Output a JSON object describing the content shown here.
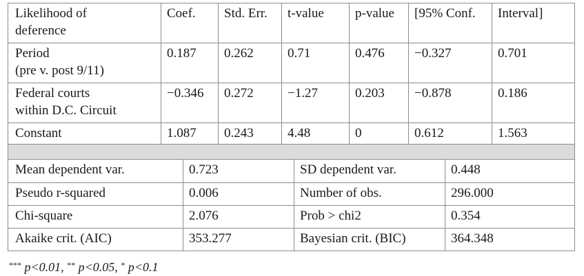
{
  "regression": {
    "headers": [
      "Likelihood of deference",
      "Coef.",
      "Std. Err.",
      "t-value",
      "p-value",
      "[95% Conf.",
      "Interval]"
    ],
    "header_lines": [
      "Likelihood of",
      "deference"
    ],
    "rows": [
      {
        "label_lines": [
          "Period",
          "(pre v. post 9/11)"
        ],
        "cells": [
          "0.187",
          "0.262",
          "0.71",
          "0.476",
          "−0.327",
          "0.701"
        ]
      },
      {
        "label_lines": [
          "Federal courts",
          "within D.C. Circuit"
        ],
        "cells": [
          "−0.346",
          "0.272",
          "−1.27",
          "0.203",
          "−0.878",
          "0.186"
        ]
      },
      {
        "label_lines": [
          "Constant"
        ],
        "cells": [
          "1.087",
          "0.243",
          "4.48",
          "0",
          "0.612",
          "1.563"
        ]
      }
    ]
  },
  "stats": [
    {
      "l1": "Mean dependent var.",
      "v1": "0.723",
      "l2": "SD dependent var.",
      "v2": "0.448"
    },
    {
      "l1": "Pseudo r-squared",
      "v1": "0.006",
      "l2": "Number of obs.",
      "v2": "296.000"
    },
    {
      "l1": "Chi-square",
      "v1": "2.076",
      "l2": "Prob > chi2",
      "v2": "0.354"
    },
    {
      "l1": "Akaike crit. (AIC)",
      "v1": "353.277",
      "l2": "Bayesian crit. (BIC)",
      "v2": "364.348"
    }
  ],
  "footnote": {
    "s1": "***",
    "t1": "p<0.01, ",
    "s2": "**",
    "t2": "p<0.05, ",
    "s3": "*",
    "t3": "p<0.1"
  }
}
